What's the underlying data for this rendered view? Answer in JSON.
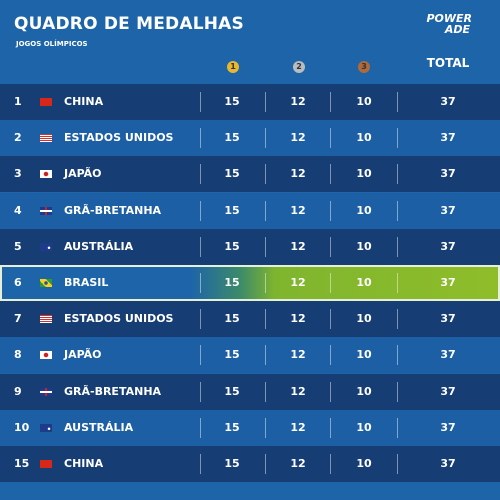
{
  "header": {
    "title": "QUADRO DE MEDALHAS",
    "subtitle": "JOGOS OLÍMPICOS",
    "logo": [
      "POWER",
      "ADE"
    ],
    "medals": [
      "1",
      "2",
      "3"
    ],
    "total": "TOTAL"
  },
  "table": {
    "highlight": 5,
    "rows": [
      [
        1,
        "CHINA",
        15,
        12,
        10,
        37
      ],
      [
        2,
        "ESTADOS UNIDOS",
        15,
        12,
        10,
        37
      ],
      [
        3,
        "JAPÃO",
        15,
        12,
        10,
        37
      ],
      [
        4,
        "GRÃ-BRETANHA",
        15,
        12,
        10,
        37
      ],
      [
        5,
        "AUSTRÁLIA",
        15,
        12,
        10,
        37
      ],
      [
        6,
        "BRASIL",
        15,
        12,
        10,
        37
      ],
      [
        7,
        "ESTADOS UNIDOS",
        15,
        12,
        10,
        37
      ],
      [
        8,
        "JAPÃO",
        15,
        12,
        10,
        37
      ],
      [
        9,
        "GRÃ-BRETANHA",
        15,
        12,
        10,
        37
      ],
      [
        10,
        "AUSTRÁLIA",
        15,
        12,
        10,
        37
      ],
      [
        15,
        "CHINA",
        15,
        12,
        10,
        37
      ]
    ]
  }
}
